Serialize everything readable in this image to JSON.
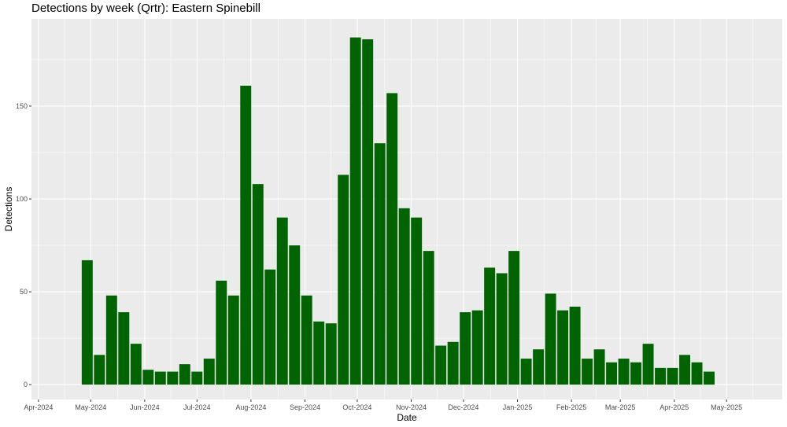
{
  "chart_data": {
    "type": "bar",
    "title": "Detections by week (Qrtr): Eastern Spinebill",
    "xlabel": "Date",
    "ylabel": "Detections",
    "ylim": [
      -8,
      197
    ],
    "yticks": [
      0,
      50,
      100,
      150
    ],
    "x_axis": {
      "type": "date",
      "range": [
        "2024-03-28",
        "2025-06-02"
      ],
      "ticks": [
        {
          "date": "2024-04-01",
          "label": "Apr-2024"
        },
        {
          "date": "2024-05-01",
          "label": "May-2024"
        },
        {
          "date": "2024-06-01",
          "label": "Jun-2024"
        },
        {
          "date": "2024-07-01",
          "label": "Jul-2024"
        },
        {
          "date": "2024-08-01",
          "label": "Aug-2024"
        },
        {
          "date": "2024-09-01",
          "label": "Sep-2024"
        },
        {
          "date": "2024-10-01",
          "label": "Oct-2024"
        },
        {
          "date": "2024-11-01",
          "label": "Nov-2024"
        },
        {
          "date": "2024-12-01",
          "label": "Dec-2024"
        },
        {
          "date": "2025-01-01",
          "label": "Jan-2025"
        },
        {
          "date": "2025-02-01",
          "label": "Feb-2025"
        },
        {
          "date": "2025-03-01",
          "label": "Mar-2025"
        },
        {
          "date": "2025-04-01",
          "label": "Apr-2025"
        },
        {
          "date": "2025-05-01",
          "label": "May-2025"
        }
      ]
    },
    "bar_width_days": 6.3,
    "bar_color": "#006400",
    "panel_color": "#ebebeb",
    "grid": true,
    "series": [
      {
        "x": [
          "2024-04-29",
          "2024-05-06",
          "2024-05-13",
          "2024-05-20",
          "2024-05-27",
          "2024-06-03",
          "2024-06-10",
          "2024-06-17",
          "2024-06-24",
          "2024-07-01",
          "2024-07-08",
          "2024-07-15",
          "2024-07-22",
          "2024-07-29",
          "2024-08-05",
          "2024-08-12",
          "2024-08-19",
          "2024-08-26",
          "2024-09-02",
          "2024-09-09",
          "2024-09-16",
          "2024-09-23",
          "2024-09-30",
          "2024-10-07",
          "2024-10-14",
          "2024-10-21",
          "2024-10-28",
          "2024-11-04",
          "2024-11-11",
          "2024-11-18",
          "2024-11-25",
          "2024-12-02",
          "2024-12-09",
          "2024-12-16",
          "2024-12-23",
          "2024-12-30",
          "2025-01-06",
          "2025-01-13",
          "2025-01-20",
          "2025-01-27",
          "2025-02-03",
          "2025-02-10",
          "2025-02-17",
          "2025-02-24",
          "2025-03-03",
          "2025-03-10",
          "2025-03-17",
          "2025-03-24",
          "2025-03-31",
          "2025-04-07",
          "2025-04-14",
          "2025-04-21"
        ],
        "values": [
          67,
          16,
          48,
          39,
          22,
          8,
          7,
          7,
          11,
          7,
          14,
          56,
          48,
          161,
          108,
          62,
          90,
          75,
          48,
          34,
          33,
          113,
          187,
          186,
          130,
          157,
          95,
          90,
          72,
          21,
          23,
          39,
          40,
          63,
          60,
          72,
          14,
          19,
          49,
          40,
          42,
          14,
          19,
          12,
          14,
          12,
          22,
          9,
          9,
          16,
          12,
          7
        ]
      }
    ]
  }
}
